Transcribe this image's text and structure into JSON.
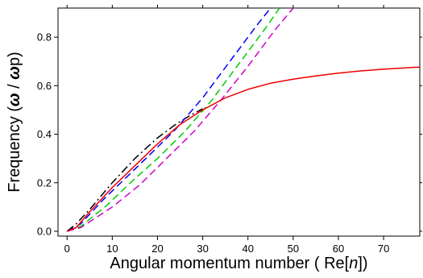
{
  "chart_data": {
    "type": "line",
    "title": "",
    "xlabel": {
      "prefix": "Angular momentum number ( Re[",
      "var": "n",
      "suffix": "])"
    },
    "ylabel": {
      "prefix": "Frequency (",
      "omega": "ω",
      "slash": " / ",
      "omega_p": "ω",
      "p": "p",
      "suffix": ")"
    },
    "xlim": [
      -2,
      78
    ],
    "ylim": [
      -0.02,
      0.92
    ],
    "x_ticks": [
      0,
      10,
      20,
      30,
      40,
      50,
      60,
      70
    ],
    "x_tick_labels": [
      "0",
      "10",
      "20",
      "30",
      "40",
      "50",
      "60",
      "70"
    ],
    "y_ticks": [
      0.0,
      0.2,
      0.4,
      0.6,
      0.8
    ],
    "y_tick_labels": [
      "0.0",
      "0.2",
      "0.4",
      "0.6",
      "0.8"
    ],
    "grid": false,
    "series": [
      {
        "color": "#000000",
        "style": "dashdot",
        "points": [
          [
            0,
            0
          ],
          [
            2,
            0.03
          ],
          [
            5,
            0.09
          ],
          [
            10,
            0.2
          ],
          [
            15,
            0.3
          ],
          [
            20,
            0.385
          ],
          [
            24,
            0.44
          ],
          [
            27,
            0.475
          ],
          [
            30,
            0.505
          ]
        ]
      },
      {
        "color": "#0000ff",
        "style": "dashed",
        "points": [
          [
            0,
            0
          ],
          [
            3,
            0.03
          ],
          [
            8,
            0.13
          ],
          [
            13,
            0.22
          ],
          [
            18,
            0.31
          ],
          [
            24,
            0.42
          ],
          [
            30,
            0.55
          ],
          [
            36,
            0.7
          ],
          [
            42,
            0.85
          ],
          [
            45,
            0.92
          ]
        ]
      },
      {
        "color": "#00cc00",
        "style": "dashed",
        "points": [
          [
            0,
            0
          ],
          [
            3,
            0.02
          ],
          [
            9,
            0.11
          ],
          [
            14,
            0.2
          ],
          [
            20,
            0.3
          ],
          [
            26,
            0.41
          ],
          [
            32,
            0.54
          ],
          [
            38,
            0.69
          ],
          [
            44,
            0.84
          ],
          [
            47,
            0.92
          ]
        ]
      },
      {
        "color": "#cc00cc",
        "style": "dashed",
        "points": [
          [
            0,
            0
          ],
          [
            3,
            0.015
          ],
          [
            10,
            0.1
          ],
          [
            16,
            0.19
          ],
          [
            22,
            0.3
          ],
          [
            28,
            0.41
          ],
          [
            34,
            0.54
          ],
          [
            40,
            0.68
          ],
          [
            46,
            0.83
          ],
          [
            50,
            0.92
          ]
        ]
      },
      {
        "color": "#ee0000",
        "style": "solid",
        "points": [
          [
            0,
            0
          ],
          [
            2,
            0.015
          ],
          [
            5,
            0.08
          ],
          [
            10,
            0.18
          ],
          [
            15,
            0.27
          ],
          [
            20,
            0.36
          ],
          [
            25,
            0.44
          ],
          [
            30,
            0.5
          ],
          [
            35,
            0.55
          ],
          [
            40,
            0.585
          ],
          [
            45,
            0.61
          ],
          [
            50,
            0.627
          ],
          [
            55,
            0.64
          ],
          [
            60,
            0.652
          ],
          [
            65,
            0.661
          ],
          [
            70,
            0.668
          ],
          [
            75,
            0.674
          ],
          [
            78,
            0.677
          ]
        ]
      }
    ]
  }
}
